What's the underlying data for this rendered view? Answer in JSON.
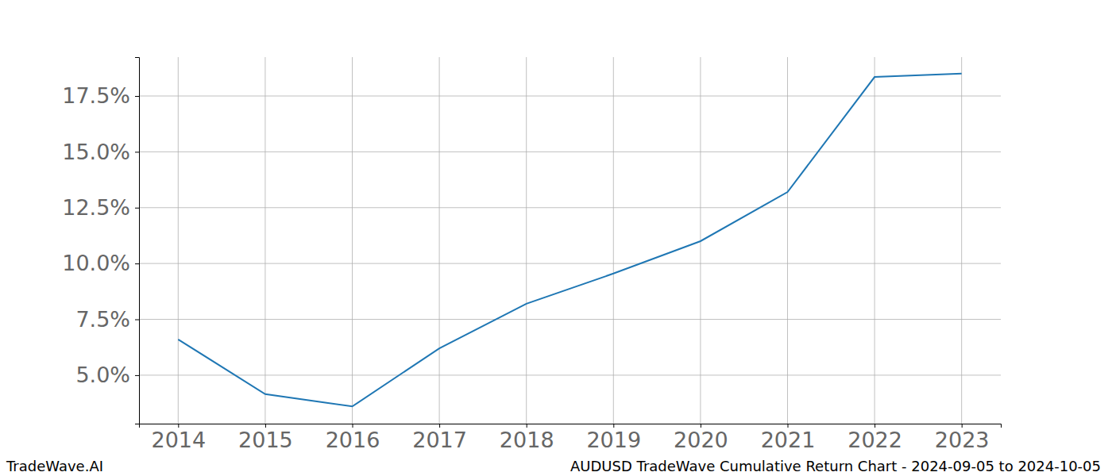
{
  "chart_data": {
    "type": "line",
    "title": "AUDUSD TradeWave Cumulative Return Chart - 2024-09-05 to 2024-10-05",
    "annotations": [
      "TradeWave.AI"
    ],
    "x": [
      2014,
      2015,
      2016,
      2017,
      2018,
      2019,
      2020,
      2021,
      2022,
      2023
    ],
    "values": [
      6.6,
      4.15,
      3.6,
      6.2,
      8.2,
      9.55,
      11.0,
      13.2,
      18.35,
      18.5
    ],
    "color": "#1f77b4",
    "xlim": [
      2013.55,
      2023.45
    ],
    "xticks": [
      2014,
      2015,
      2016,
      2017,
      2018,
      2019,
      2020,
      2021,
      2022,
      2023
    ],
    "ylim": [
      2.83,
      19.24
    ],
    "yticks": [
      {
        "value": 5,
        "label": "5.0%"
      },
      {
        "value": 7.5,
        "label": "7.5%"
      },
      {
        "value": 10,
        "label": "10.0%"
      },
      {
        "value": 12.5,
        "label": "12.5%"
      },
      {
        "value": 15,
        "label": "15.0%"
      },
      {
        "value": 17.5,
        "label": "17.5%"
      }
    ],
    "grid": true
  }
}
